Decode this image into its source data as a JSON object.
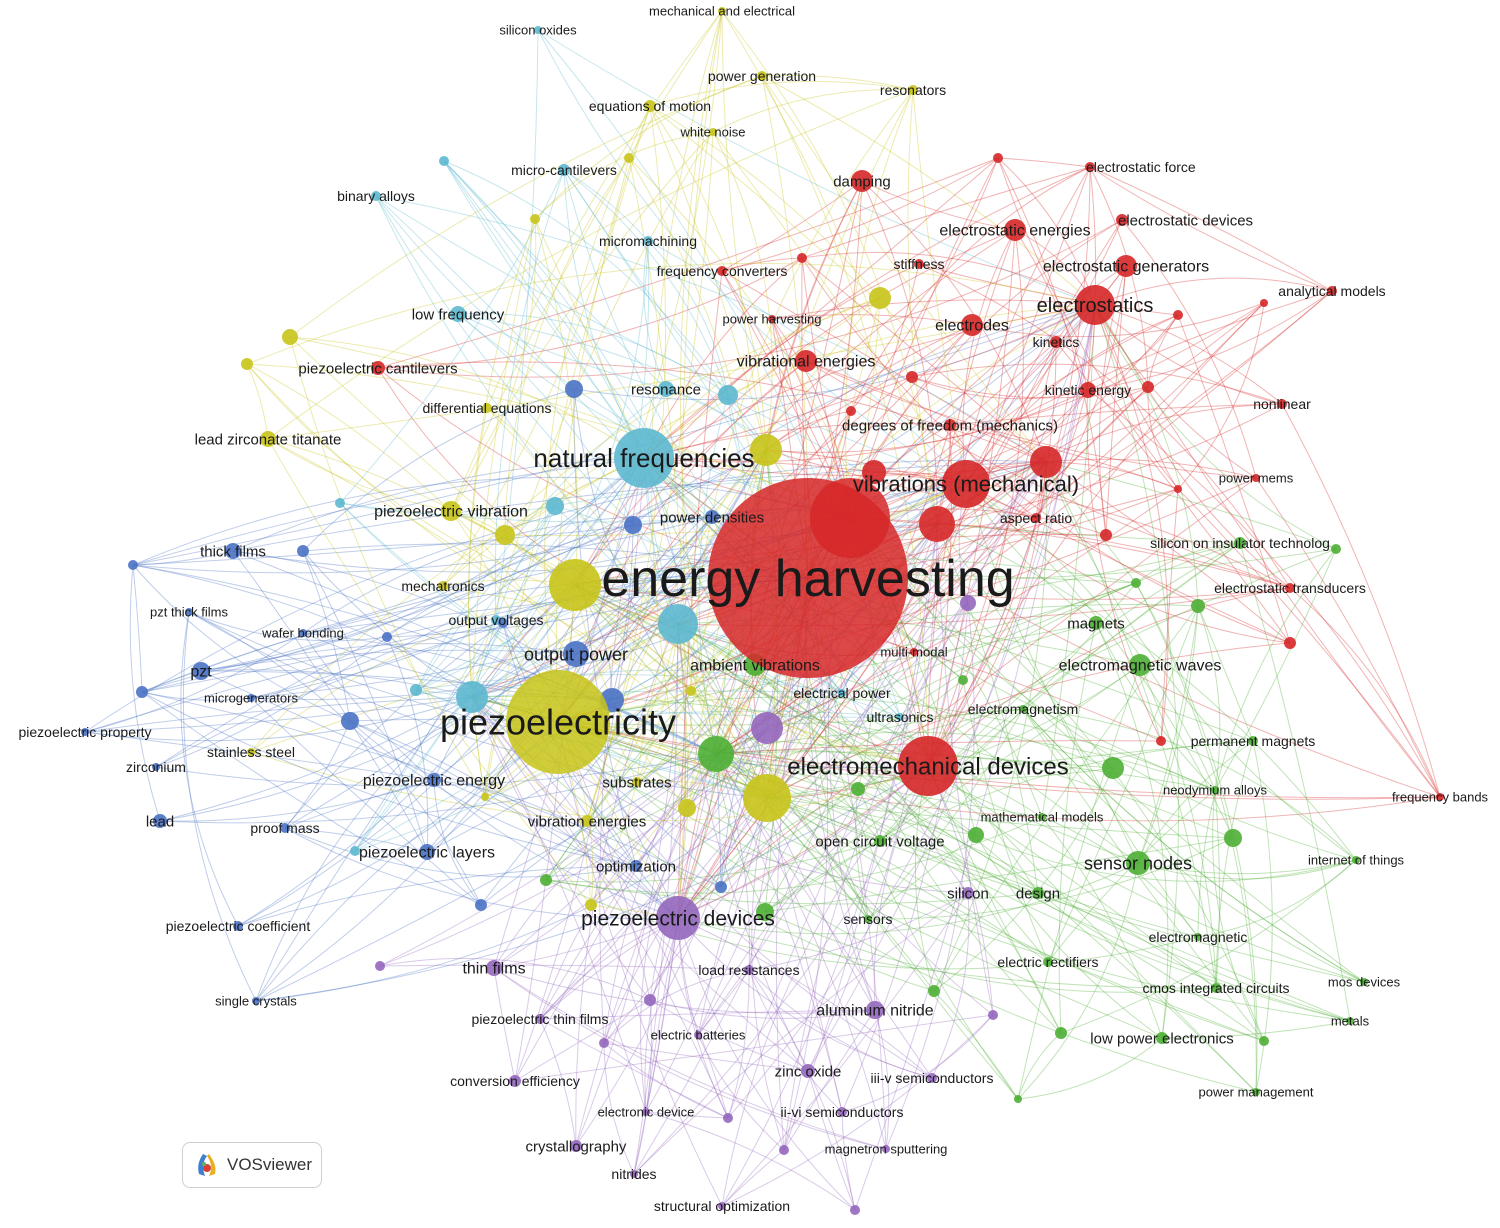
{
  "branding": {
    "label": "VOSviewer",
    "logo_icon": "vosviewer-logo-icon"
  },
  "clusters": {
    "red": "#d62728",
    "green": "#4caf34",
    "blue": "#4a72c4",
    "yellow": "#c8c419",
    "cyan": "#5cb8cf",
    "purple": "#9467bd"
  },
  "nodes": [
    {
      "id": "energy harvesting",
      "label": "energy harvesting",
      "cluster": "red",
      "weight": 10
    },
    {
      "id": "piezoelectricity",
      "label": "piezoelectricity",
      "cluster": "yellow",
      "weight": 8
    },
    {
      "id": "natural frequencies",
      "label": "natural frequencies",
      "cluster": "cyan",
      "weight": 6
    },
    {
      "id": "electromechanical devices",
      "label": "electromechanical devices",
      "cluster": "red",
      "weight": 5
    },
    {
      "id": "vibrations (mechanical)",
      "label": "vibrations (mechanical)",
      "cluster": "red",
      "weight": 4
    },
    {
      "id": "piezoelectric devices",
      "label": "piezoelectric devices",
      "cluster": "purple",
      "weight": 4
    },
    {
      "id": "electrostatics",
      "label": "electrostatics",
      "cluster": "red",
      "weight": 3
    },
    {
      "id": "sensor nodes",
      "label": "sensor nodes",
      "cluster": "green",
      "weight": 3
    },
    {
      "id": "electromagnetic waves",
      "label": "electromagnetic waves",
      "cluster": "green",
      "weight": 2
    },
    {
      "id": "ambient vibrations",
      "label": "ambient vibrations",
      "cluster": "green",
      "weight": 2
    },
    {
      "id": "output power",
      "label": "output power",
      "cluster": "blue",
      "weight": 2
    },
    {
      "id": "piezoelectric vibration",
      "label": "piezoelectric vibration",
      "cluster": "yellow",
      "weight": 2
    },
    {
      "id": "power densities",
      "label": "power densities",
      "cluster": "blue",
      "weight": 2
    },
    {
      "id": "electrostatic energies",
      "label": "electrostatic energies",
      "cluster": "red",
      "weight": 2
    },
    {
      "id": "electrostatic generators",
      "label": "electrostatic generators",
      "cluster": "red",
      "weight": 2
    },
    {
      "id": "electrodes",
      "label": "electrodes",
      "cluster": "red",
      "weight": 2
    },
    {
      "id": "vibrational energies",
      "label": "vibrational energies",
      "cluster": "red",
      "weight": 2
    },
    {
      "id": "damping",
      "label": "damping",
      "cluster": "red",
      "weight": 2
    },
    {
      "id": "electrostatic devices",
      "label": "electrostatic devices",
      "cluster": "red",
      "weight": 1
    },
    {
      "id": "electrostatic force",
      "label": "electrostatic force",
      "cluster": "red",
      "weight": 1
    },
    {
      "id": "kinetics",
      "label": "kinetics",
      "cluster": "red",
      "weight": 1
    },
    {
      "id": "kinetic energy",
      "label": "kinetic energy",
      "cluster": "red",
      "weight": 1
    },
    {
      "id": "degrees of freedom (mechanics)",
      "label": "degrees of freedom (mechanics)",
      "cluster": "red",
      "weight": 1
    },
    {
      "id": "analytical models",
      "label": "analytical models",
      "cluster": "red",
      "weight": 1
    },
    {
      "id": "nonlinear",
      "label": "nonlinear",
      "cluster": "red",
      "weight": 1
    },
    {
      "id": "power mems",
      "label": "power mems",
      "cluster": "red",
      "weight": 1
    },
    {
      "id": "aspect ratio",
      "label": "aspect ratio",
      "cluster": "red",
      "weight": 1
    },
    {
      "id": "stiffness",
      "label": "stiffness",
      "cluster": "red",
      "weight": 1
    },
    {
      "id": "frequency converters",
      "label": "frequency converters",
      "cluster": "red",
      "weight": 1
    },
    {
      "id": "power harvesting",
      "label": "power harvesting",
      "cluster": "red",
      "weight": 1
    },
    {
      "id": "piezoelectric cantilevers",
      "label": "piezoelectric cantilevers",
      "cluster": "red",
      "weight": 1
    },
    {
      "id": "electrostatic transducers",
      "label": "electrostatic transducers",
      "cluster": "red",
      "weight": 1
    },
    {
      "id": "multi-modal",
      "label": "multi-modal",
      "cluster": "red",
      "weight": 1
    },
    {
      "id": "frequency bands",
      "label": "frequency bands",
      "cluster": "red",
      "weight": 1
    },
    {
      "id": "silicon on insulator technolog",
      "label": "silicon on insulator technolog",
      "cluster": "green",
      "weight": 1
    },
    {
      "id": "magnets",
      "label": "magnets",
      "cluster": "green",
      "weight": 1
    },
    {
      "id": "electromagnetism",
      "label": "electromagnetism",
      "cluster": "green",
      "weight": 1
    },
    {
      "id": "permanent magnets",
      "label": "permanent magnets",
      "cluster": "green",
      "weight": 1
    },
    {
      "id": "neodymium alloys",
      "label": "neodymium alloys",
      "cluster": "green",
      "weight": 1
    },
    {
      "id": "mathematical models",
      "label": "mathematical models",
      "cluster": "green",
      "weight": 1
    },
    {
      "id": "open circuit voltage",
      "label": "open circuit voltage",
      "cluster": "green",
      "weight": 1
    },
    {
      "id": "internet of things",
      "label": "internet of things",
      "cluster": "green",
      "weight": 1
    },
    {
      "id": "silicon",
      "label": "silicon",
      "cluster": "purple",
      "weight": 1
    },
    {
      "id": "design",
      "label": "design",
      "cluster": "green",
      "weight": 1
    },
    {
      "id": "sensors",
      "label": "sensors",
      "cluster": "green",
      "weight": 1
    },
    {
      "id": "electromagnetic",
      "label": "electromagnetic",
      "cluster": "green",
      "weight": 1
    },
    {
      "id": "electric rectifiers",
      "label": "electric rectifiers",
      "cluster": "green",
      "weight": 1
    },
    {
      "id": "cmos integrated circuits",
      "label": "cmos integrated circuits",
      "cluster": "green",
      "weight": 1
    },
    {
      "id": "mos devices",
      "label": "mos devices",
      "cluster": "green",
      "weight": 1
    },
    {
      "id": "metals",
      "label": "metals",
      "cluster": "green",
      "weight": 1
    },
    {
      "id": "low power electronics",
      "label": "low power electronics",
      "cluster": "green",
      "weight": 1
    },
    {
      "id": "power management",
      "label": "power management",
      "cluster": "green",
      "weight": 1
    },
    {
      "id": "electrical power",
      "label": "electrical power",
      "cluster": "cyan",
      "weight": 1
    },
    {
      "id": "ultrasonics",
      "label": "ultrasonics",
      "cluster": "cyan",
      "weight": 1
    },
    {
      "id": "resonance",
      "label": "resonance",
      "cluster": "cyan",
      "weight": 1
    },
    {
      "id": "low frequency",
      "label": "low frequency",
      "cluster": "cyan",
      "weight": 1
    },
    {
      "id": "micro-cantilevers",
      "label": "micro-cantilevers",
      "cluster": "cyan",
      "weight": 1
    },
    {
      "id": "micromachining",
      "label": "micromachining",
      "cluster": "cyan",
      "weight": 1
    },
    {
      "id": "binary alloys",
      "label": "binary alloys",
      "cluster": "cyan",
      "weight": 1
    },
    {
      "id": "silicon oxides",
      "label": "silicon oxides",
      "cluster": "cyan",
      "weight": 1
    },
    {
      "id": "mechanical and electrical",
      "label": "mechanical and electrical",
      "cluster": "yellow",
      "weight": 1
    },
    {
      "id": "power generation",
      "label": "power generation",
      "cluster": "yellow",
      "weight": 1
    },
    {
      "id": "resonators",
      "label": "resonators",
      "cluster": "yellow",
      "weight": 1
    },
    {
      "id": "equations of motion",
      "label": "equations of motion",
      "cluster": "yellow",
      "weight": 1
    },
    {
      "id": "white noise",
      "label": "white noise",
      "cluster": "yellow",
      "weight": 1
    },
    {
      "id": "differential equations",
      "label": "differential equations",
      "cluster": "yellow",
      "weight": 1
    },
    {
      "id": "lead zirconate titanate",
      "label": "lead zirconate titanate",
      "cluster": "yellow",
      "weight": 1
    },
    {
      "id": "mechatronics",
      "label": "mechatronics",
      "cluster": "yellow",
      "weight": 1
    },
    {
      "id": "output voltages",
      "label": "output voltages",
      "cluster": "cyan",
      "weight": 1
    },
    {
      "id": "substrates",
      "label": "substrates",
      "cluster": "yellow",
      "weight": 1
    },
    {
      "id": "piezoelectric energy",
      "label": "piezoelectric energy",
      "cluster": "blue",
      "weight": 1
    },
    {
      "id": "stainless steel",
      "label": "stainless steel",
      "cluster": "yellow",
      "weight": 1
    },
    {
      "id": "vibration energies",
      "label": "vibration energies",
      "cluster": "yellow",
      "weight": 1
    },
    {
      "id": "optimization",
      "label": "optimization",
      "cluster": "blue",
      "weight": 1
    },
    {
      "id": "thick films",
      "label": "thick films",
      "cluster": "blue",
      "weight": 1
    },
    {
      "id": "pzt thick films",
      "label": "pzt thick films",
      "cluster": "blue",
      "weight": 1
    },
    {
      "id": "wafer bonding",
      "label": "wafer bonding",
      "cluster": "blue",
      "weight": 1
    },
    {
      "id": "pzt",
      "label": "pzt",
      "cluster": "blue",
      "weight": 1
    },
    {
      "id": "microgenerators",
      "label": "microgenerators",
      "cluster": "blue",
      "weight": 1
    },
    {
      "id": "piezoelectric property",
      "label": "piezoelectric property",
      "cluster": "blue",
      "weight": 1
    },
    {
      "id": "zirconium",
      "label": "zirconium",
      "cluster": "blue",
      "weight": 1
    },
    {
      "id": "lead",
      "label": "lead",
      "cluster": "blue",
      "weight": 1
    },
    {
      "id": "proof mass",
      "label": "proof mass",
      "cluster": "blue",
      "weight": 1
    },
    {
      "id": "piezoelectric layers",
      "label": "piezoelectric layers",
      "cluster": "blue",
      "weight": 1
    },
    {
      "id": "piezoelectric coefficient",
      "label": "piezoelectric coefficient",
      "cluster": "blue",
      "weight": 1
    },
    {
      "id": "single crystals",
      "label": "single crystals",
      "cluster": "blue",
      "weight": 1
    },
    {
      "id": "thin films",
      "label": "thin films",
      "cluster": "purple",
      "weight": 1
    },
    {
      "id": "load resistances",
      "label": "load resistances",
      "cluster": "purple",
      "weight": 1
    },
    {
      "id": "piezoelectric thin films",
      "label": "piezoelectric thin films",
      "cluster": "purple",
      "weight": 1
    },
    {
      "id": "electric batteries",
      "label": "electric batteries",
      "cluster": "purple",
      "weight": 1
    },
    {
      "id": "aluminum nitride",
      "label": "aluminum nitride",
      "cluster": "purple",
      "weight": 1
    },
    {
      "id": "zinc oxide",
      "label": "zinc oxide",
      "cluster": "purple",
      "weight": 1
    },
    {
      "id": "iii-v semiconductors",
      "label": "iii-v semiconductors",
      "cluster": "purple",
      "weight": 1
    },
    {
      "id": "ii-vi semiconductors",
      "label": "ii-vi semiconductors",
      "cluster": "purple",
      "weight": 1
    },
    {
      "id": "conversion efficiency",
      "label": "conversion efficiency",
      "cluster": "purple",
      "weight": 1
    },
    {
      "id": "electronic device",
      "label": "electronic device",
      "cluster": "purple",
      "weight": 1
    },
    {
      "id": "crystallography",
      "label": "crystallography",
      "cluster": "purple",
      "weight": 1
    },
    {
      "id": "magnetron sputtering",
      "label": "magnetron sputtering",
      "cluster": "purple",
      "weight": 1
    },
    {
      "id": "nitrides",
      "label": "nitrides",
      "cluster": "purple",
      "weight": 1
    },
    {
      "id": "structural optimization",
      "label": "structural optimization",
      "cluster": "purple",
      "weight": 1
    }
  ]
}
